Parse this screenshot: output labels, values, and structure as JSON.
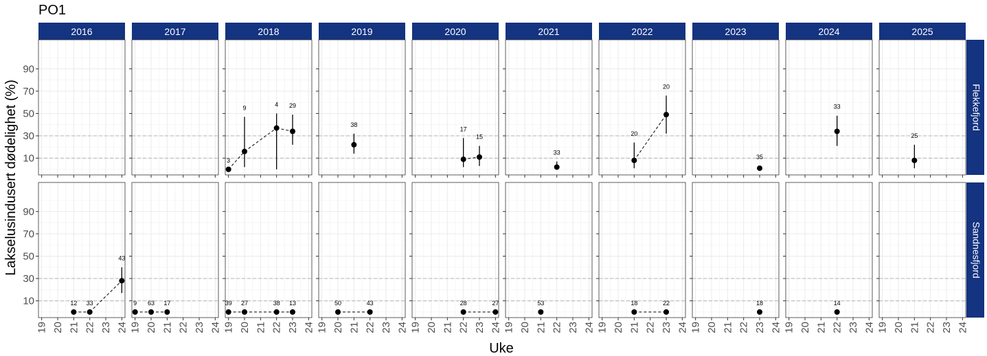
{
  "chart_data": {
    "type": "scatter",
    "title": "PO1",
    "xlabel": "Uke",
    "ylabel": "Lakselusindusert dødelighet (%)",
    "x_ticks": [
      19,
      20,
      21,
      22,
      23,
      24
    ],
    "y_ticks": [
      10,
      30,
      50,
      70,
      90
    ],
    "xlim": [
      18.8,
      24.2
    ],
    "ylim": [
      -5,
      116
    ],
    "reference_lines": [
      10,
      30
    ],
    "colors": {
      "strip": "#143380",
      "point": "#000000",
      "grid": "#ebebeb",
      "ref_line": "#b3b3b3"
    },
    "columns": [
      "2016",
      "2017",
      "2018",
      "2019",
      "2020",
      "2021",
      "2022",
      "2023",
      "2024",
      "2025"
    ],
    "rows": [
      "Flekkefjord",
      "Sandnesfjord"
    ],
    "panels": [
      {
        "row": "Flekkefjord",
        "column": "2016",
        "points": []
      },
      {
        "row": "Flekkefjord",
        "column": "2017",
        "points": []
      },
      {
        "row": "Flekkefjord",
        "column": "2018",
        "points": [
          {
            "x": 19,
            "y": 0,
            "lo": 0,
            "hi": 0,
            "n": "3"
          },
          {
            "x": 20,
            "y": 16,
            "lo": 2,
            "hi": 47,
            "n": "9"
          },
          {
            "x": 22,
            "y": 37,
            "lo": 0,
            "hi": 50,
            "n": "4"
          },
          {
            "x": 23,
            "y": 34,
            "lo": 22,
            "hi": 49,
            "n": "29"
          }
        ]
      },
      {
        "row": "Flekkefjord",
        "column": "2019",
        "points": [
          {
            "x": 21,
            "y": 22,
            "lo": 14,
            "hi": 32,
            "n": "38"
          }
        ]
      },
      {
        "row": "Flekkefjord",
        "column": "2020",
        "points": [
          {
            "x": 22,
            "y": 9,
            "lo": 2,
            "hi": 28,
            "n": "17"
          },
          {
            "x": 23,
            "y": 11,
            "lo": 3,
            "hi": 21,
            "n": "15"
          }
        ]
      },
      {
        "row": "Flekkefjord",
        "column": "2021",
        "points": [
          {
            "x": 22,
            "y": 2,
            "lo": 0,
            "hi": 7,
            "n": "33"
          }
        ]
      },
      {
        "row": "Flekkefjord",
        "column": "2022",
        "points": [
          {
            "x": 21,
            "y": 8,
            "lo": 1,
            "hi": 24,
            "n": "20"
          },
          {
            "x": 23,
            "y": 49,
            "lo": 32,
            "hi": 66,
            "n": "20"
          }
        ]
      },
      {
        "row": "Flekkefjord",
        "column": "2023",
        "points": [
          {
            "x": 23,
            "y": 1,
            "lo": 0,
            "hi": 3,
            "n": "35"
          }
        ]
      },
      {
        "row": "Flekkefjord",
        "column": "2024",
        "points": [
          {
            "x": 22,
            "y": 34,
            "lo": 21,
            "hi": 48,
            "n": "33"
          }
        ]
      },
      {
        "row": "Flekkefjord",
        "column": "2025",
        "points": [
          {
            "x": 21,
            "y": 8,
            "lo": 1,
            "hi": 22,
            "n": "25"
          }
        ]
      },
      {
        "row": "Sandnesfjord",
        "column": "2016",
        "points": [
          {
            "x": 21,
            "y": 0,
            "lo": 0,
            "hi": 0,
            "n": "12"
          },
          {
            "x": 22,
            "y": 0,
            "lo": 0,
            "hi": 0,
            "n": "33"
          },
          {
            "x": 24,
            "y": 28,
            "lo": 17,
            "hi": 40,
            "n": "43"
          }
        ]
      },
      {
        "row": "Sandnesfjord",
        "column": "2017",
        "points": [
          {
            "x": 19,
            "y": 0,
            "lo": 0,
            "hi": 0,
            "n": "9"
          },
          {
            "x": 20,
            "y": 0,
            "lo": 0,
            "hi": 0,
            "n": "63"
          },
          {
            "x": 21,
            "y": 0,
            "lo": 0,
            "hi": 0,
            "n": "17"
          }
        ]
      },
      {
        "row": "Sandnesfjord",
        "column": "2018",
        "points": [
          {
            "x": 19,
            "y": 0,
            "lo": 0,
            "hi": 0,
            "n": "39"
          },
          {
            "x": 20,
            "y": 0,
            "lo": 0,
            "hi": 0,
            "n": "27"
          },
          {
            "x": 22,
            "y": 0,
            "lo": 0,
            "hi": 0,
            "n": "38"
          },
          {
            "x": 23,
            "y": 0,
            "lo": 0,
            "hi": 0,
            "n": "13"
          }
        ]
      },
      {
        "row": "Sandnesfjord",
        "column": "2019",
        "points": [
          {
            "x": 20,
            "y": 0,
            "lo": 0,
            "hi": 0,
            "n": "50"
          },
          {
            "x": 22,
            "y": 0,
            "lo": 0,
            "hi": 0,
            "n": "43"
          }
        ]
      },
      {
        "row": "Sandnesfjord",
        "column": "2020",
        "points": [
          {
            "x": 22,
            "y": 0,
            "lo": 0,
            "hi": 0,
            "n": "28"
          },
          {
            "x": 24,
            "y": 0,
            "lo": 0,
            "hi": 0,
            "n": "27"
          }
        ]
      },
      {
        "row": "Sandnesfjord",
        "column": "2021",
        "points": [
          {
            "x": 21,
            "y": 0,
            "lo": 0,
            "hi": 0,
            "n": "53"
          }
        ]
      },
      {
        "row": "Sandnesfjord",
        "column": "2022",
        "points": [
          {
            "x": 21,
            "y": 0,
            "lo": 0,
            "hi": 0,
            "n": "18"
          },
          {
            "x": 23,
            "y": 0,
            "lo": 0,
            "hi": 0,
            "n": "22"
          }
        ]
      },
      {
        "row": "Sandnesfjord",
        "column": "2023",
        "points": [
          {
            "x": 23,
            "y": 0,
            "lo": 0,
            "hi": 0,
            "n": "18"
          }
        ]
      },
      {
        "row": "Sandnesfjord",
        "column": "2024",
        "points": [
          {
            "x": 22,
            "y": 0,
            "lo": 0,
            "hi": 0,
            "n": "14"
          }
        ]
      },
      {
        "row": "Sandnesfjord",
        "column": "2025",
        "points": []
      }
    ]
  }
}
